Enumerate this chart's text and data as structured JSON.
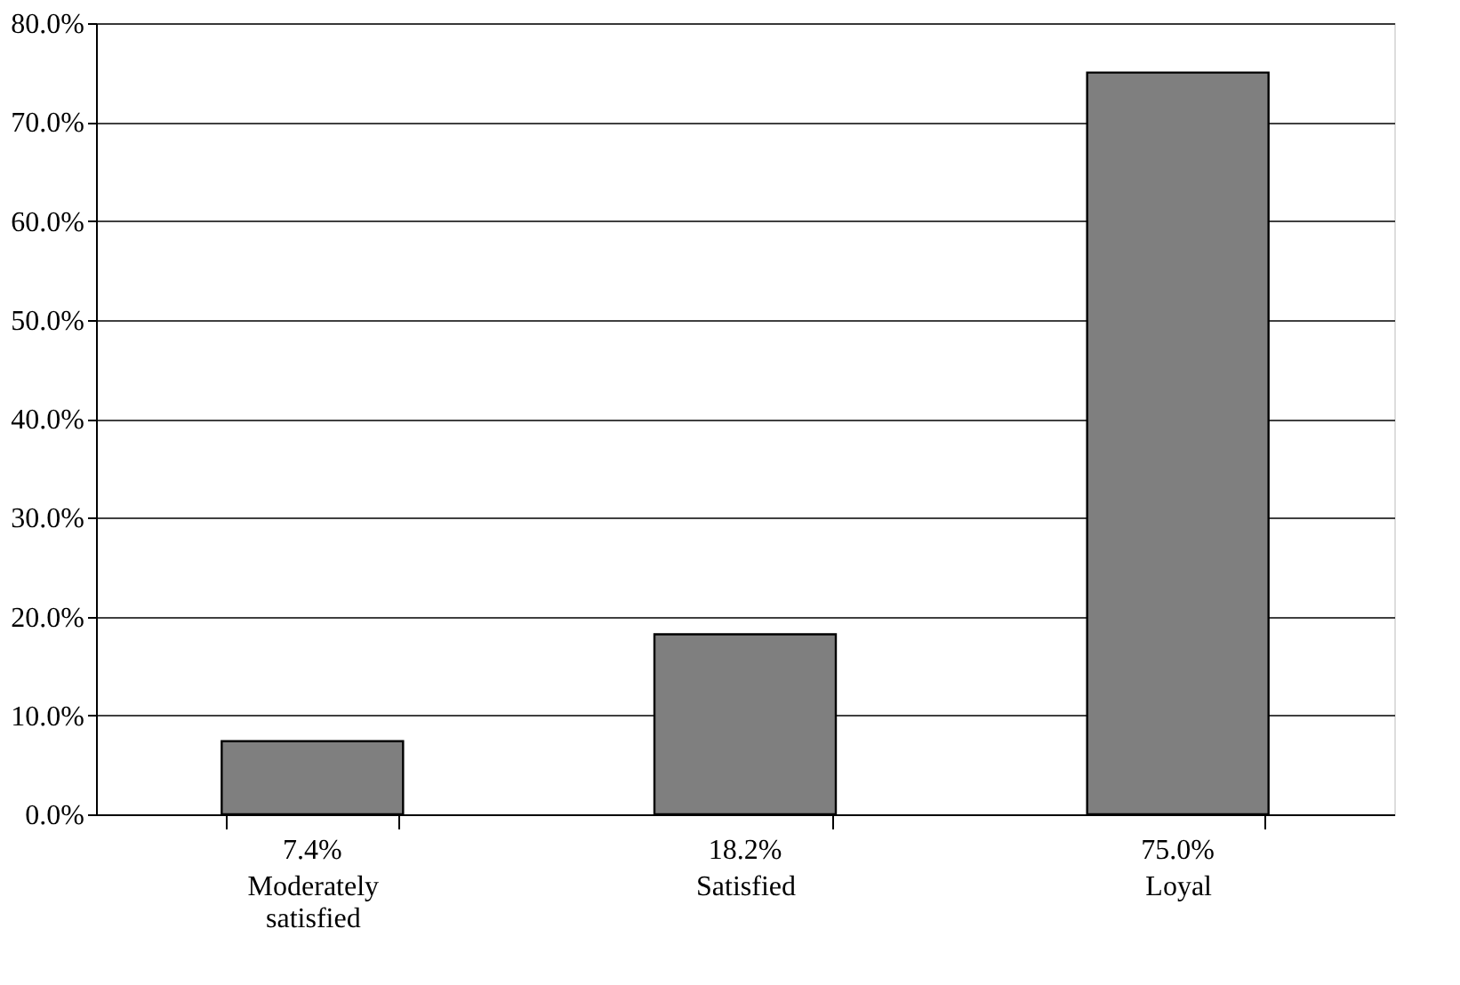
{
  "chart_data": {
    "type": "bar",
    "categories": [
      "Moderately satisfied",
      "Satisfied",
      "Loyal"
    ],
    "values": [
      7.4,
      18.2,
      75.0
    ],
    "value_labels": [
      "7.4%",
      "18.2%",
      "75.0%"
    ],
    "color": "#7f7f7f",
    "ylim": [
      0,
      80
    ],
    "yticks": [
      {
        "value": 0,
        "label": "0.0%"
      },
      {
        "value": 10,
        "label": "10.0%"
      },
      {
        "value": 20,
        "label": "20.0%"
      },
      {
        "value": 30,
        "label": "30.0%"
      },
      {
        "value": 40,
        "label": "40.0%"
      },
      {
        "value": 50,
        "label": "50.0%"
      },
      {
        "value": 60,
        "label": "60.0%"
      },
      {
        "value": 70,
        "label": "70.0%"
      },
      {
        "value": 80,
        "label": "80.0%"
      }
    ],
    "grid": "y"
  }
}
